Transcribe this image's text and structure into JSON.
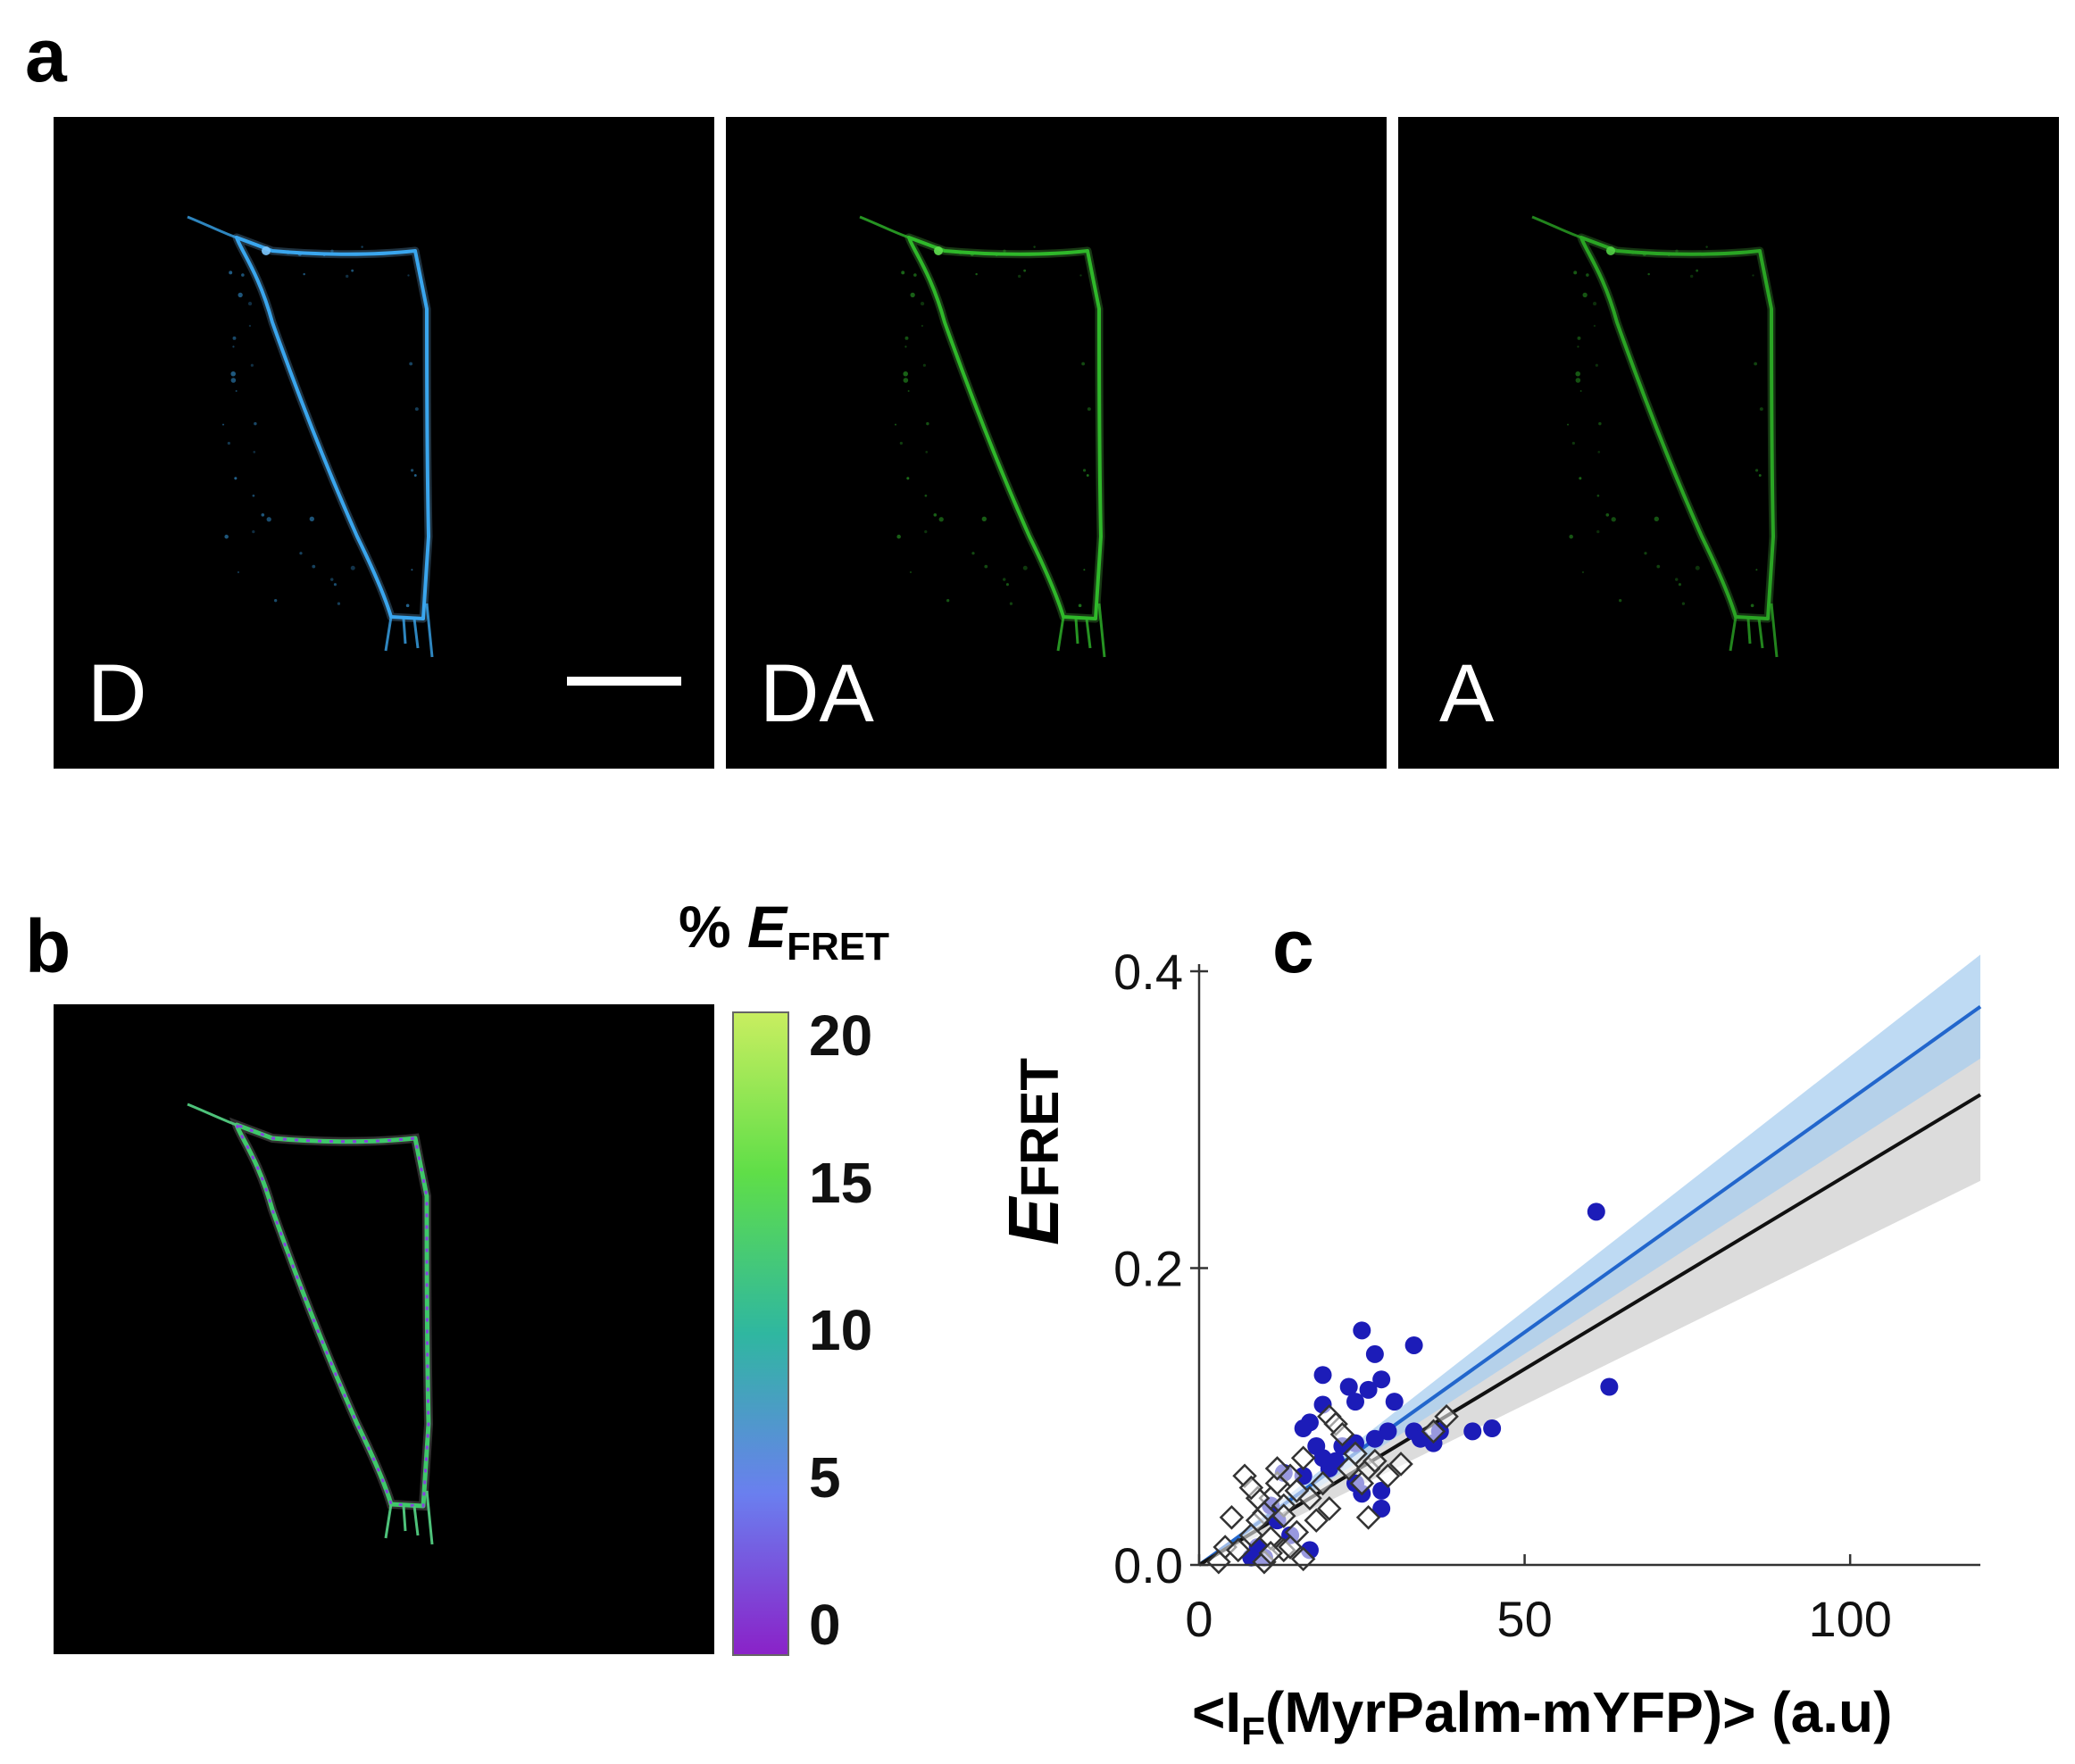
{
  "panel_a": {
    "letter": "a",
    "images": [
      {
        "label": "D",
        "color": "#3aa6ee",
        "glow": "#7cc8ff"
      },
      {
        "label": "DA",
        "color": "#2fb82a",
        "glow": "#5fe04f"
      },
      {
        "label": "A",
        "color": "#2aa524",
        "glow": "#52d046"
      }
    ]
  },
  "panel_b": {
    "letter": "b",
    "colorbar": {
      "title_prefix": "% ",
      "title_italic": "E",
      "title_sub": "FRET",
      "ticks": [
        "20",
        "15",
        "10",
        "5",
        "0"
      ],
      "colors_top_to_bottom": [
        "#c8ee60",
        "#5fde48",
        "#2fb7a0",
        "#6a7fef",
        "#8a22c8"
      ]
    }
  },
  "panel_c": {
    "letter": "c",
    "chart_data": {
      "type": "scatter",
      "ylabel_italic": "E",
      "ylabel_sub": "FRET",
      "xlabel_prefix": "<I",
      "xlabel_sub": "F",
      "xlabel_suffix": "(MyrPalm-mYFP)> (a.u)",
      "xlim": [
        0,
        120
      ],
      "ylim": [
        0,
        0.4
      ],
      "xticks": [
        0,
        50,
        100
      ],
      "xtick_labels": [
        "0",
        "50",
        "100"
      ],
      "yticks": [
        0.0,
        0.2,
        0.4
      ],
      "ytick_labels": [
        "0.0",
        "0.2",
        "0.4"
      ],
      "series": [
        {
          "name": "blue points",
          "marker": "circle",
          "color": "#1c1cb8",
          "points": [
            [
              61,
              0.238
            ],
            [
              63,
              0.12
            ],
            [
              25,
              0.158
            ],
            [
              33,
              0.148
            ],
            [
              27,
              0.142
            ],
            [
              19,
              0.128
            ],
            [
              23,
              0.12
            ],
            [
              28,
              0.125
            ],
            [
              26,
              0.118
            ],
            [
              24,
              0.11
            ],
            [
              30,
              0.11
            ],
            [
              19,
              0.108
            ],
            [
              16,
              0.092
            ],
            [
              17,
              0.096
            ],
            [
              45,
              0.092
            ],
            [
              42,
              0.09
            ],
            [
              37,
              0.09
            ],
            [
              33,
              0.09
            ],
            [
              29,
              0.09
            ],
            [
              27,
              0.085
            ],
            [
              24,
              0.082
            ],
            [
              22,
              0.08
            ],
            [
              18,
              0.08
            ],
            [
              20,
              0.065
            ],
            [
              16,
              0.06
            ],
            [
              13,
              0.062
            ],
            [
              11,
              0.04
            ],
            [
              12,
              0.03
            ],
            [
              14,
              0.02
            ],
            [
              17,
              0.01
            ],
            [
              10,
              0.005
            ],
            [
              25,
              0.048
            ],
            [
              28,
              0.05
            ],
            [
              28,
              0.038
            ],
            [
              24,
              0.055
            ],
            [
              21,
              0.07
            ],
            [
              19,
              0.072
            ],
            [
              34,
              0.085
            ],
            [
              36,
              0.082
            ],
            [
              9,
              0.012
            ],
            [
              8,
              0.005
            ]
          ]
        },
        {
          "name": "open diamonds",
          "marker": "diamond",
          "color": "#333333",
          "points": [
            [
              7,
              0.06
            ],
            [
              5,
              0.032
            ],
            [
              4,
              0.012
            ],
            [
              3,
              0.002
            ],
            [
              10,
              0.035
            ],
            [
              12,
              0.055
            ],
            [
              14,
              0.06
            ],
            [
              11,
              0.045
            ],
            [
              13,
              0.04
            ],
            [
              9,
              0.03
            ],
            [
              8,
              0.02
            ],
            [
              11,
              0.018
            ],
            [
              13,
              0.01
            ],
            [
              15,
              0.022
            ],
            [
              16,
              0.004
            ],
            [
              10,
              0.002
            ],
            [
              6,
              0.01
            ],
            [
              17,
              0.045
            ],
            [
              19,
              0.055
            ],
            [
              20,
              0.1
            ],
            [
              21,
              0.095
            ],
            [
              22,
              0.088
            ],
            [
              24,
              0.075
            ],
            [
              23,
              0.065
            ],
            [
              26,
              0.065
            ],
            [
              27,
              0.07
            ],
            [
              31,
              0.068
            ],
            [
              36,
              0.09
            ],
            [
              38,
              0.1
            ],
            [
              25,
              0.055
            ],
            [
              26,
              0.032
            ],
            [
              18,
              0.03
            ],
            [
              20,
              0.038
            ],
            [
              15,
              0.05
            ],
            [
              9,
              0.045
            ],
            [
              12,
              0.065
            ],
            [
              14,
              0.012
            ],
            [
              8,
              0.052
            ],
            [
              11,
              0.008
            ],
            [
              29,
              0.06
            ],
            [
              16,
              0.072
            ],
            [
              13,
              0.033
            ]
          ]
        }
      ],
      "fits": [
        {
          "name": "blue fit",
          "color": "#2266cc",
          "band_color": "#a8cdef",
          "slope": 0.003135,
          "intercept": 0.0,
          "band_half_width_at_max": 0.035
        },
        {
          "name": "black fit",
          "color": "#111111",
          "band_color": "#d0d0d0",
          "slope": 0.00264,
          "intercept": 0.0,
          "band_half_width_at_max": 0.058
        }
      ]
    }
  }
}
